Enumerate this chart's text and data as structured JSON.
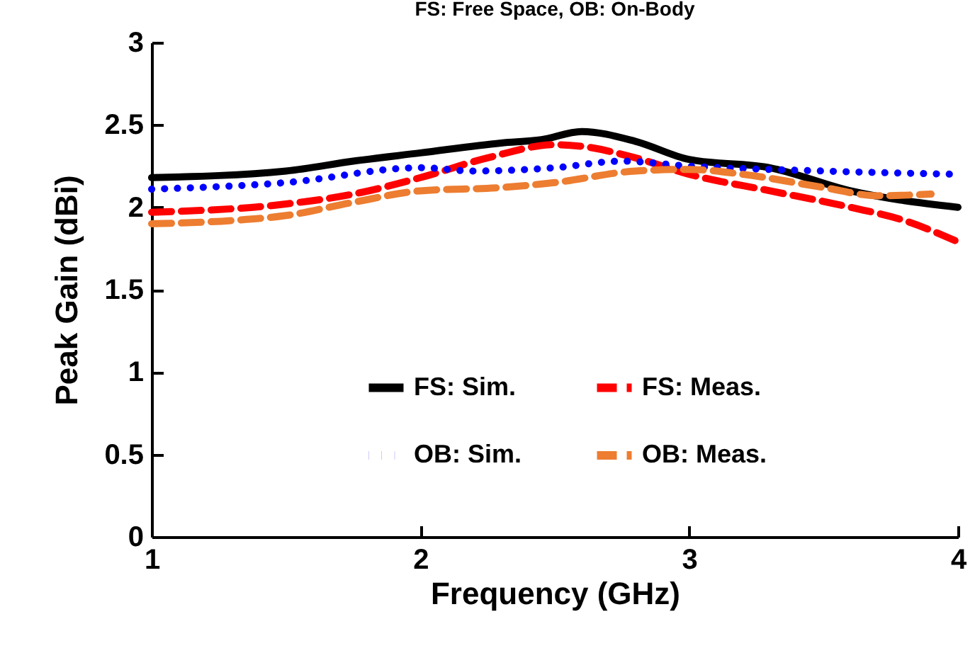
{
  "chart_data": {
    "type": "line",
    "title": "FS: Free Space, OB: On-Body",
    "xlabel": "Frequency (GHz)",
    "ylabel": "Peak Gain (dBi)",
    "xlim": [
      1,
      4
    ],
    "xticks": [
      1,
      2,
      3,
      4
    ],
    "ylim": [
      0,
      3
    ],
    "yticks": [
      0,
      0.5,
      1,
      1.5,
      2,
      2.5,
      3
    ],
    "grid": false,
    "legend": "bottom",
    "marker": "none",
    "series": [
      {
        "name": "FS: Sim.",
        "color": "#000000",
        "line_style": "solid",
        "x": [
          1,
          1.5,
          1.75,
          2,
          2.3,
          2.45,
          2.6,
          2.8,
          3,
          3.3,
          3.6,
          4
        ],
        "values": [
          2.18,
          2.22,
          2.28,
          2.33,
          2.39,
          2.41,
          2.46,
          2.4,
          2.29,
          2.24,
          2.1,
          2.0
        ]
      },
      {
        "name": "FS: Meas.",
        "color": "#ff0000",
        "line_style": "dashed",
        "x": [
          1,
          1.5,
          1.75,
          2,
          2.25,
          2.5,
          2.6,
          2.8,
          3,
          3.3,
          3.6,
          3.8,
          4
        ],
        "values": [
          1.97,
          2.02,
          2.08,
          2.18,
          2.3,
          2.38,
          2.37,
          2.3,
          2.2,
          2.1,
          2.0,
          1.92,
          1.79
        ]
      },
      {
        "name": "OB: Sim.",
        "color": "#0000ff",
        "line_style": "dotted",
        "x": [
          1,
          1.5,
          2,
          2.2,
          2.5,
          2.75,
          3,
          3.5,
          4
        ],
        "values": [
          2.11,
          2.15,
          2.24,
          2.22,
          2.24,
          2.28,
          2.25,
          2.22,
          2.2
        ]
      },
      {
        "name": "OB: Meas.",
        "color": "#ed7d31",
        "line_style": "dashed",
        "x": [
          1,
          1.3,
          1.5,
          1.75,
          2,
          2.3,
          2.5,
          2.8,
          3,
          3.2,
          3.5,
          3.7,
          3.9
        ],
        "values": [
          1.9,
          1.92,
          1.95,
          2.03,
          2.1,
          2.12,
          2.15,
          2.22,
          2.23,
          2.2,
          2.12,
          2.07,
          2.08
        ]
      }
    ]
  }
}
